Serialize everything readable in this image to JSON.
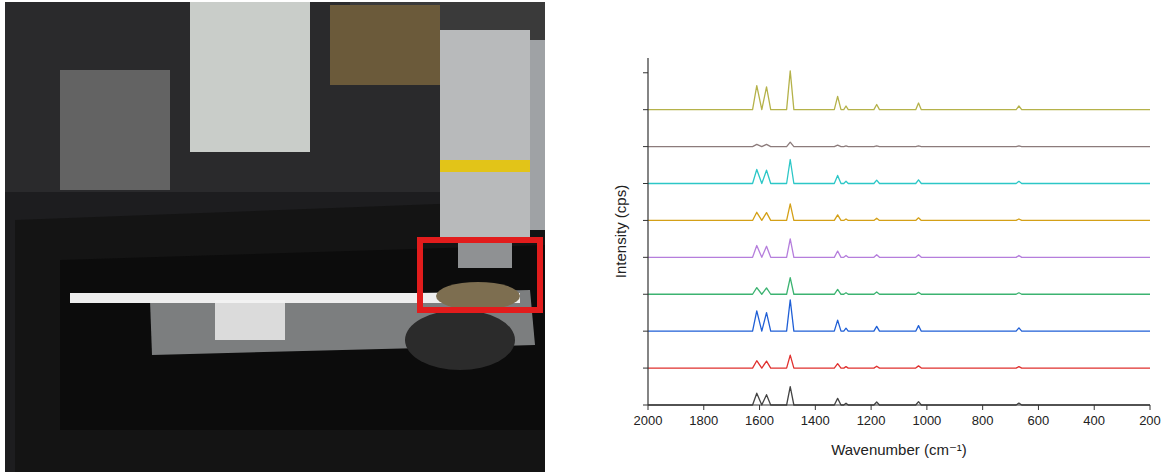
{
  "chart_data": {
    "type": "line",
    "x_label": "Wavenumber (cm⁻¹)",
    "y_label": "Intensity (cps)",
    "x": [
      2000,
      1625,
      1610,
      1592,
      1575,
      1560,
      1503,
      1490,
      1477,
      1332,
      1320,
      1308,
      1298,
      1290,
      1282,
      1190,
      1180,
      1170,
      1040,
      1030,
      1020,
      680,
      670,
      660,
      200
    ],
    "xlim": [
      2000,
      200
    ],
    "xticks": [
      2000,
      1800,
      1600,
      1400,
      1200,
      1000,
      800,
      600,
      400,
      200
    ],
    "ylim": [
      0,
      9.4
    ],
    "yticks": [
      0,
      1,
      2,
      3,
      4,
      5,
      6,
      7,
      8,
      9
    ],
    "tick_labels": "x",
    "grid": false,
    "series": [
      {
        "color": "#444444",
        "values": [
          0,
          0,
          0.32,
          0,
          0.28,
          0,
          0,
          0.5,
          0,
          0,
          0.18,
          0,
          0,
          0.05,
          0,
          0,
          0.08,
          0,
          0,
          0.09,
          0,
          0,
          0.05,
          0,
          0
        ]
      },
      {
        "color": "#e0302e",
        "values": [
          1,
          1,
          1.2,
          1,
          1.19,
          1,
          1,
          1.35,
          1,
          1,
          1.12,
          1,
          1,
          1.04,
          1,
          1,
          1.05,
          1,
          1,
          1.06,
          1,
          1,
          1.04,
          1,
          1
        ]
      },
      {
        "color": "#1f5fd6",
        "values": [
          2,
          2,
          2.55,
          2,
          2.5,
          2,
          2,
          2.85,
          2,
          2,
          2.3,
          2,
          2,
          2.08,
          2,
          2,
          2.13,
          2,
          2,
          2.15,
          2,
          2,
          2.09,
          2,
          2
        ]
      },
      {
        "color": "#3cb371",
        "values": [
          3,
          3,
          3.18,
          3,
          3.17,
          3,
          3,
          3.45,
          3,
          3,
          3.13,
          3,
          3,
          3.04,
          3,
          3,
          3.06,
          3,
          3,
          3.05,
          3,
          3,
          3.04,
          3,
          3
        ]
      },
      {
        "color": "#b57edc",
        "values": [
          4,
          4,
          4.32,
          4,
          4.3,
          4,
          4,
          4.5,
          4,
          4,
          4.17,
          4,
          4,
          4.05,
          4,
          4,
          4.07,
          4,
          4,
          4.07,
          4,
          4,
          4.05,
          4,
          4
        ]
      },
      {
        "color": "#d4a017",
        "values": [
          5,
          5,
          5.22,
          5,
          5.21,
          5,
          5,
          5.45,
          5,
          5,
          5.15,
          5,
          5,
          5.04,
          5,
          5,
          5.06,
          5,
          5,
          5.07,
          5,
          5,
          5.04,
          5,
          5
        ]
      },
      {
        "color": "#2cc7c7",
        "values": [
          6,
          6,
          6.38,
          6,
          6.36,
          6,
          6,
          6.65,
          6,
          6,
          6.22,
          6,
          6,
          6.06,
          6,
          6,
          6.09,
          6,
          6,
          6.1,
          6,
          6,
          6.06,
          6,
          6
        ]
      },
      {
        "color": "#8c7b7b",
        "values": [
          7,
          7,
          7.06,
          7,
          7.06,
          7,
          7,
          7.12,
          7,
          7,
          7.04,
          7,
          7,
          7.02,
          7,
          7,
          7.02,
          7,
          7,
          7.02,
          7,
          7,
          7.02,
          7,
          7
        ]
      },
      {
        "color": "#b5b24a",
        "values": [
          8,
          8,
          8.65,
          8,
          8.62,
          8,
          8,
          9.05,
          8,
          8,
          8.36,
          8,
          8,
          8.1,
          8,
          8,
          8.14,
          8,
          8,
          8.18,
          8,
          8,
          8.1,
          8,
          8
        ]
      }
    ]
  }
}
